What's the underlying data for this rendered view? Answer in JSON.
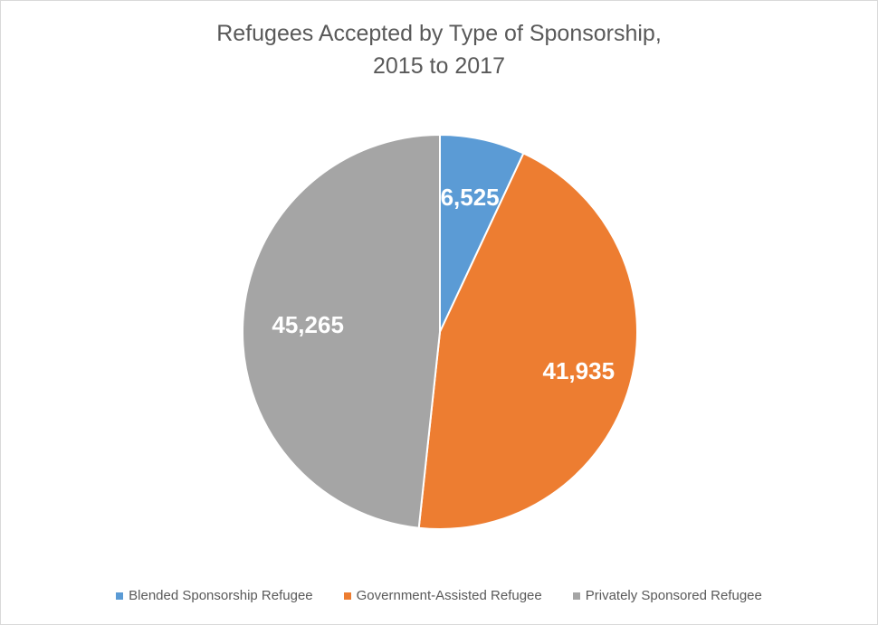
{
  "chart_data": {
    "type": "pie",
    "title_lines": [
      "Refugees Accepted by Type of Sponsorship,",
      "2015 to 2017"
    ],
    "slices": [
      {
        "name": "Blended Sponsorship Refugee",
        "value": 6525,
        "label": "6,525",
        "color": "#5b9bd5"
      },
      {
        "name": "Government-Assisted Refugee",
        "value": 41935,
        "label": "41,935",
        "color": "#ed7d31"
      },
      {
        "name": "Privately Sponsored Refugee",
        "value": 45265,
        "label": "45,265",
        "color": "#a5a5a5"
      }
    ],
    "start_angle": "12 o'clock",
    "direction": "clockwise",
    "legend_position": "bottom"
  }
}
